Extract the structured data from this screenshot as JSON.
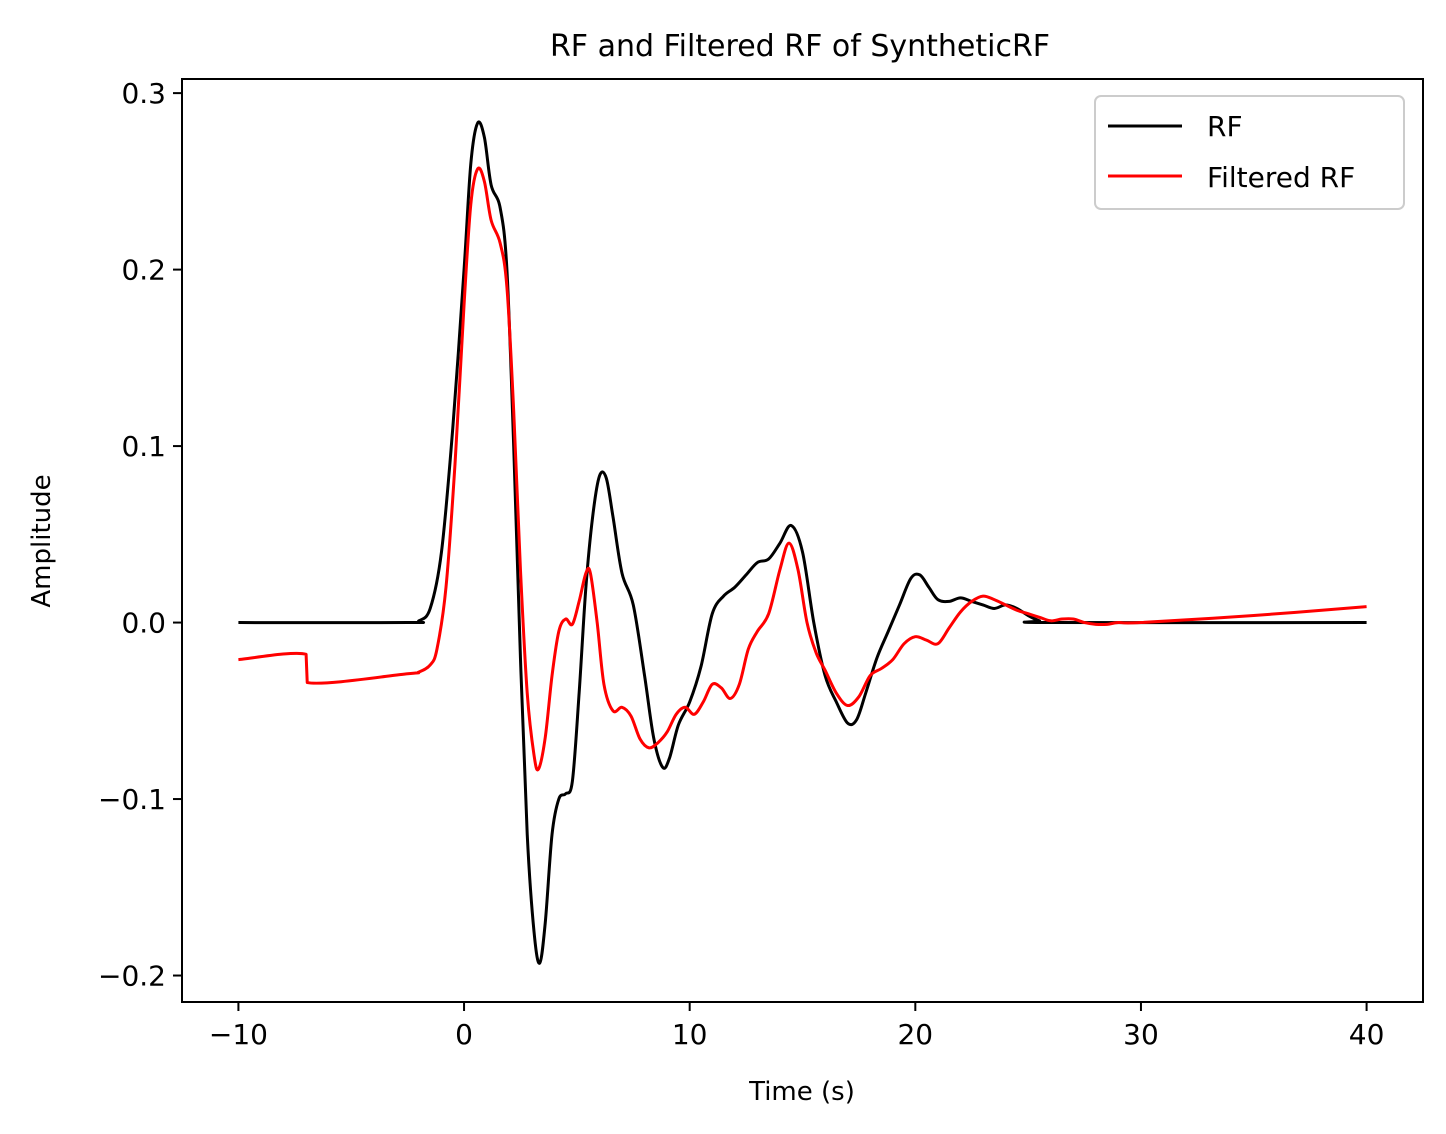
{
  "chart_data": {
    "type": "line",
    "title": "RF and Filtered RF of SyntheticRF",
    "xlabel": "Time (s)",
    "ylabel": "Amplitude",
    "xlim": [
      -12.5,
      42.5
    ],
    "ylim": [
      -0.215,
      0.308
    ],
    "x_ticks": [
      -10,
      0,
      10,
      20,
      30,
      40
    ],
    "y_ticks": [
      -0.2,
      -0.1,
      0.0,
      0.1,
      0.2,
      0.3
    ],
    "x_tick_labels": [
      "−10",
      "0",
      "10",
      "20",
      "30",
      "40"
    ],
    "y_tick_labels": [
      "−0.2",
      "−0.1",
      "0.0",
      "0.1",
      "0.2",
      "0.3"
    ],
    "grid": false,
    "legend_position": "top-right",
    "series": [
      {
        "name": "RF",
        "color": "#000000",
        "points": [
          [
            -10,
            0.0
          ],
          [
            -2.5,
            0.0
          ],
          [
            -2.0,
            0.001
          ],
          [
            -1.5,
            0.008
          ],
          [
            -1.0,
            0.04
          ],
          [
            -0.5,
            0.11
          ],
          [
            0.0,
            0.2
          ],
          [
            0.3,
            0.26
          ],
          [
            0.6,
            0.283
          ],
          [
            0.9,
            0.275
          ],
          [
            1.2,
            0.248
          ],
          [
            1.6,
            0.235
          ],
          [
            1.9,
            0.2
          ],
          [
            2.2,
            0.1
          ],
          [
            2.5,
            -0.02
          ],
          [
            2.8,
            -0.12
          ],
          [
            3.1,
            -0.175
          ],
          [
            3.35,
            -0.193
          ],
          [
            3.6,
            -0.17
          ],
          [
            3.9,
            -0.12
          ],
          [
            4.2,
            -0.1
          ],
          [
            4.5,
            -0.097
          ],
          [
            4.8,
            -0.09
          ],
          [
            5.1,
            -0.04
          ],
          [
            5.4,
            0.02
          ],
          [
            5.7,
            0.06
          ],
          [
            6.0,
            0.083
          ],
          [
            6.3,
            0.082
          ],
          [
            6.6,
            0.06
          ],
          [
            7.0,
            0.028
          ],
          [
            7.5,
            0.01
          ],
          [
            8.0,
            -0.03
          ],
          [
            8.4,
            -0.065
          ],
          [
            8.8,
            -0.082
          ],
          [
            9.1,
            -0.077
          ],
          [
            9.5,
            -0.058
          ],
          [
            10.0,
            -0.045
          ],
          [
            10.5,
            -0.025
          ],
          [
            11.0,
            0.005
          ],
          [
            11.5,
            0.015
          ],
          [
            12.0,
            0.02
          ],
          [
            12.5,
            0.027
          ],
          [
            13.0,
            0.034
          ],
          [
            13.5,
            0.036
          ],
          [
            14.0,
            0.045
          ],
          [
            14.5,
            0.055
          ],
          [
            15.0,
            0.04
          ],
          [
            15.5,
            0.0
          ],
          [
            16.0,
            -0.03
          ],
          [
            16.5,
            -0.045
          ],
          [
            17.0,
            -0.057
          ],
          [
            17.4,
            -0.055
          ],
          [
            17.8,
            -0.04
          ],
          [
            18.3,
            -0.02
          ],
          [
            18.8,
            -0.005
          ],
          [
            19.3,
            0.01
          ],
          [
            19.8,
            0.025
          ],
          [
            20.2,
            0.027
          ],
          [
            20.6,
            0.02
          ],
          [
            21.0,
            0.013
          ],
          [
            21.5,
            0.012
          ],
          [
            22.0,
            0.014
          ],
          [
            22.5,
            0.012
          ],
          [
            23.0,
            0.01
          ],
          [
            23.5,
            0.008
          ],
          [
            24.0,
            0.01
          ],
          [
            24.5,
            0.008
          ],
          [
            25.0,
            0.004
          ],
          [
            25.5,
            0.001
          ],
          [
            26.0,
            0.0
          ],
          [
            40,
            0.0
          ]
        ]
      },
      {
        "name": "Filtered RF",
        "color": "#ff0000",
        "points": [
          [
            -10,
            -0.021
          ],
          [
            -7.0,
            -0.018
          ],
          [
            -6.95,
            -0.034
          ],
          [
            -2.5,
            -0.029
          ],
          [
            -2.0,
            -0.028
          ],
          [
            -1.5,
            -0.024
          ],
          [
            -1.2,
            -0.015
          ],
          [
            -0.8,
            0.02
          ],
          [
            -0.4,
            0.09
          ],
          [
            0.0,
            0.18
          ],
          [
            0.3,
            0.237
          ],
          [
            0.6,
            0.257
          ],
          [
            0.9,
            0.25
          ],
          [
            1.2,
            0.228
          ],
          [
            1.6,
            0.215
          ],
          [
            1.9,
            0.19
          ],
          [
            2.2,
            0.12
          ],
          [
            2.5,
            0.03
          ],
          [
            2.8,
            -0.04
          ],
          [
            3.1,
            -0.075
          ],
          [
            3.3,
            -0.083
          ],
          [
            3.6,
            -0.065
          ],
          [
            3.9,
            -0.03
          ],
          [
            4.2,
            -0.005
          ],
          [
            4.5,
            0.002
          ],
          [
            4.8,
            -0.001
          ],
          [
            5.1,
            0.012
          ],
          [
            5.4,
            0.028
          ],
          [
            5.6,
            0.028
          ],
          [
            5.9,
            0.0
          ],
          [
            6.2,
            -0.035
          ],
          [
            6.6,
            -0.05
          ],
          [
            7.0,
            -0.048
          ],
          [
            7.4,
            -0.053
          ],
          [
            7.8,
            -0.066
          ],
          [
            8.2,
            -0.071
          ],
          [
            8.6,
            -0.068
          ],
          [
            9.0,
            -0.062
          ],
          [
            9.4,
            -0.052
          ],
          [
            9.8,
            -0.048
          ],
          [
            10.2,
            -0.052
          ],
          [
            10.6,
            -0.045
          ],
          [
            11.0,
            -0.035
          ],
          [
            11.4,
            -0.037
          ],
          [
            11.8,
            -0.043
          ],
          [
            12.2,
            -0.035
          ],
          [
            12.6,
            -0.015
          ],
          [
            13.0,
            -0.005
          ],
          [
            13.5,
            0.005
          ],
          [
            14.0,
            0.03
          ],
          [
            14.4,
            0.045
          ],
          [
            14.8,
            0.03
          ],
          [
            15.2,
            0.0
          ],
          [
            15.6,
            -0.017
          ],
          [
            16.0,
            -0.027
          ],
          [
            16.5,
            -0.04
          ],
          [
            17.0,
            -0.047
          ],
          [
            17.5,
            -0.042
          ],
          [
            18.0,
            -0.03
          ],
          [
            18.5,
            -0.026
          ],
          [
            19.0,
            -0.021
          ],
          [
            19.5,
            -0.012
          ],
          [
            20.0,
            -0.008
          ],
          [
            20.5,
            -0.01
          ],
          [
            21.0,
            -0.012
          ],
          [
            21.5,
            -0.003
          ],
          [
            22.0,
            0.006
          ],
          [
            22.5,
            0.012
          ],
          [
            23.0,
            0.015
          ],
          [
            23.5,
            0.013
          ],
          [
            24.0,
            0.01
          ],
          [
            24.5,
            0.007
          ],
          [
            25.0,
            0.005
          ],
          [
            25.5,
            0.003
          ],
          [
            26.0,
            0.001
          ],
          [
            26.5,
            0.002
          ],
          [
            27.0,
            0.002
          ],
          [
            27.5,
            0.0
          ],
          [
            28.0,
            -0.001
          ],
          [
            28.5,
            -0.001
          ],
          [
            29.0,
            0.0
          ],
          [
            30.0,
            0.0
          ],
          [
            35.0,
            0.004
          ],
          [
            40,
            0.009
          ]
        ]
      }
    ]
  }
}
